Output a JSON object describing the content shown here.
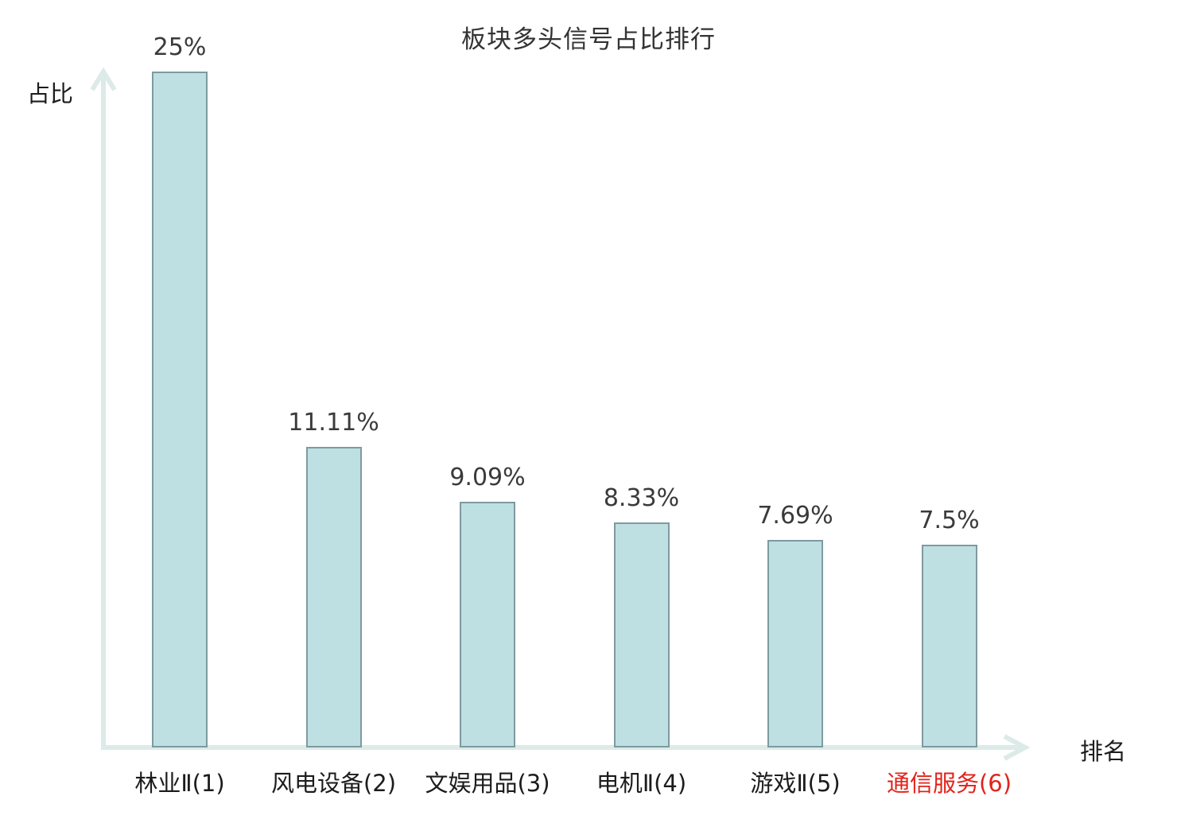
{
  "title": "板块多头信号占比排行",
  "axes": {
    "y_label": "占比",
    "x_label": "排名"
  },
  "colors": {
    "bar_fill": "#bfe0e3",
    "bar_border": "#7e9aa0",
    "axis": "#dcebe7",
    "value_label": "#3a3a3a",
    "category_label": "#1c1c1c",
    "highlight": "#e2231a"
  },
  "chart_data": {
    "type": "bar",
    "title": "板块多头信号占比排行",
    "xlabel": "排名",
    "ylabel": "占比",
    "categories": [
      "林业Ⅱ(1)",
      "风电设备(2)",
      "文娱用品(3)",
      "电机Ⅱ(4)",
      "游戏Ⅱ(5)",
      "通信服务(6)"
    ],
    "values": [
      25,
      11.11,
      9.09,
      8.33,
      7.69,
      7.5
    ],
    "value_labels": [
      "25%",
      "11.11%",
      "9.09%",
      "8.33%",
      "7.69%",
      "7.5%"
    ],
    "ylim": [
      0,
      25
    ],
    "grid": false,
    "legend": false,
    "highlight_index": 5,
    "bar_color": "#bfe0e3",
    "bar_border_color": "#7e9aa0"
  }
}
